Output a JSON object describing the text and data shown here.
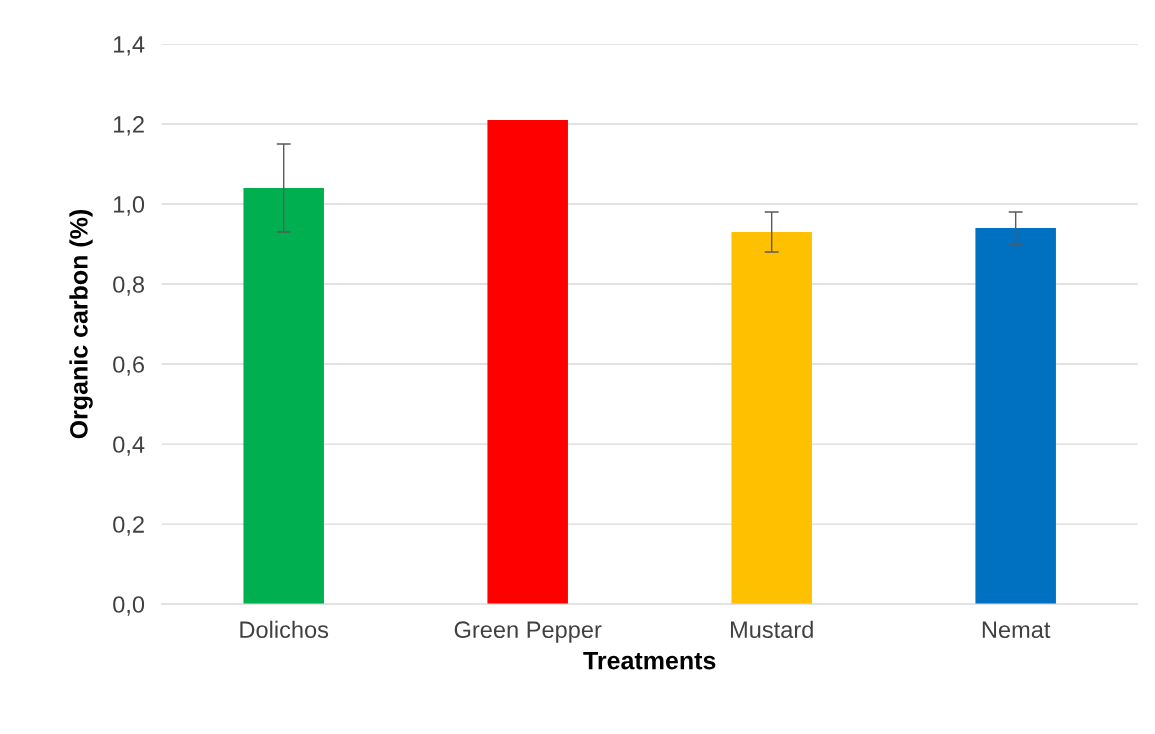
{
  "chart_data": {
    "type": "bar",
    "xlabel": "Treatments",
    "ylabel": "Organic carbon (%)",
    "categories": [
      "Dolichos",
      "Green Pepper",
      "Mustard",
      "Nemat"
    ],
    "values": [
      1.04,
      1.21,
      0.93,
      0.94
    ],
    "errors": [
      0.11,
      null,
      0.05,
      0.04
    ],
    "colors": [
      "#00b050",
      "#ff0000",
      "#ffc000",
      "#0070c0"
    ],
    "ylim": [
      0,
      1.4
    ],
    "yticks": [
      {
        "value": 0,
        "label": "0,0"
      },
      {
        "value": 0.2,
        "label": "0,2"
      },
      {
        "value": 0.4,
        "label": "0,4"
      },
      {
        "value": 0.6,
        "label": "0,6"
      },
      {
        "value": 0.8,
        "label": "0,8"
      },
      {
        "value": 1.0,
        "label": "1,0"
      },
      {
        "value": 1.2,
        "label": "1,2"
      },
      {
        "value": 1.4,
        "label": "1,4"
      }
    ],
    "grid": "y",
    "legend": false
  }
}
